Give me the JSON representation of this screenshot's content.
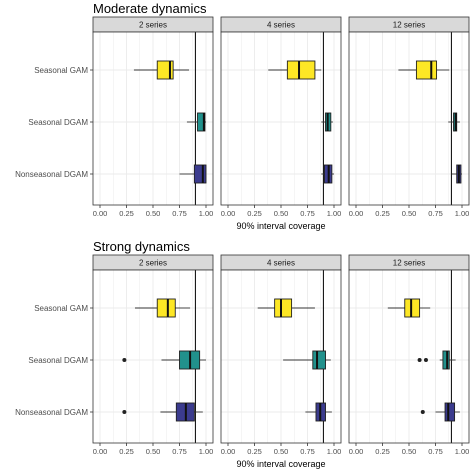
{
  "chart_data": [
    {
      "type": "boxplot",
      "title": "Moderate dynamics",
      "xlabel": "90% interval coverage",
      "xlim": [
        0,
        1
      ],
      "x_ticks": [
        "0.00",
        "0.25",
        "0.50",
        "0.75",
        "1.00"
      ],
      "reference_line": 0.9,
      "categories": [
        "Seasonal GAM",
        "Seasonal DGAM",
        "Nonseasonal DGAM"
      ],
      "facets": [
        {
          "label": "2 series",
          "boxes": [
            {
              "category": "Seasonal GAM",
              "min": 0.32,
              "q1": 0.54,
              "median": 0.66,
              "q3": 0.69,
              "max": 0.84,
              "outliers": []
            },
            {
              "category": "Seasonal DGAM",
              "min": 0.82,
              "q1": 0.92,
              "median": 0.98,
              "q3": 0.99,
              "max": 1.0,
              "outliers": []
            },
            {
              "category": "Nonseasonal DGAM",
              "min": 0.75,
              "q1": 0.89,
              "median": 0.97,
              "q3": 1.0,
              "max": 1.0,
              "outliers": []
            }
          ]
        },
        {
          "label": "4 series",
          "boxes": [
            {
              "category": "Seasonal GAM",
              "min": 0.38,
              "q1": 0.56,
              "median": 0.67,
              "q3": 0.82,
              "max": 0.88,
              "outliers": []
            },
            {
              "category": "Seasonal DGAM",
              "min": 0.88,
              "q1": 0.92,
              "median": 0.94,
              "q3": 0.97,
              "max": 0.99,
              "outliers": []
            },
            {
              "category": "Nonseasonal DGAM",
              "min": 0.88,
              "q1": 0.91,
              "median": 0.95,
              "q3": 0.98,
              "max": 1.0,
              "outliers": []
            }
          ]
        },
        {
          "label": "12 series",
          "boxes": [
            {
              "category": "Seasonal GAM",
              "min": 0.4,
              "q1": 0.57,
              "median": 0.71,
              "q3": 0.76,
              "max": 0.88,
              "outliers": []
            },
            {
              "category": "Seasonal DGAM",
              "min": 0.87,
              "q1": 0.92,
              "median": 0.94,
              "q3": 0.95,
              "max": 0.98,
              "outliers": []
            },
            {
              "category": "Nonseasonal DGAM",
              "min": 0.9,
              "q1": 0.95,
              "median": 0.97,
              "q3": 0.99,
              "max": 1.0,
              "outliers": []
            }
          ]
        }
      ]
    },
    {
      "type": "boxplot",
      "title": "Strong dynamics",
      "xlabel": "90% interval coverage",
      "xlim": [
        0,
        1
      ],
      "x_ticks": [
        "0.00",
        "0.25",
        "0.50",
        "0.75",
        "1.00"
      ],
      "reference_line": 0.9,
      "categories": [
        "Seasonal GAM",
        "Seasonal DGAM",
        "Nonseasonal DGAM"
      ],
      "facets": [
        {
          "label": "2 series",
          "boxes": [
            {
              "category": "Seasonal GAM",
              "min": 0.33,
              "q1": 0.54,
              "median": 0.64,
              "q3": 0.71,
              "max": 0.85,
              "outliers": []
            },
            {
              "category": "Seasonal DGAM",
              "min": 0.58,
              "q1": 0.75,
              "median": 0.85,
              "q3": 0.94,
              "max": 1.0,
              "outliers": [
                0.23
              ]
            },
            {
              "category": "Nonseasonal DGAM",
              "min": 0.57,
              "q1": 0.72,
              "median": 0.81,
              "q3": 0.89,
              "max": 0.97,
              "outliers": [
                0.23
              ]
            }
          ]
        },
        {
          "label": "4 series",
          "boxes": [
            {
              "category": "Seasonal GAM",
              "min": 0.28,
              "q1": 0.44,
              "median": 0.5,
              "q3": 0.6,
              "max": 0.82,
              "outliers": []
            },
            {
              "category": "Seasonal DGAM",
              "min": 0.52,
              "q1": 0.8,
              "median": 0.84,
              "q3": 0.92,
              "max": 0.97,
              "outliers": []
            },
            {
              "category": "Nonseasonal DGAM",
              "min": 0.73,
              "q1": 0.83,
              "median": 0.87,
              "q3": 0.92,
              "max": 0.98,
              "outliers": []
            }
          ]
        },
        {
          "label": "12 series",
          "boxes": [
            {
              "category": "Seasonal GAM",
              "min": 0.3,
              "q1": 0.46,
              "median": 0.52,
              "q3": 0.6,
              "max": 0.7,
              "outliers": []
            },
            {
              "category": "Seasonal DGAM",
              "min": 0.79,
              "q1": 0.82,
              "median": 0.86,
              "q3": 0.88,
              "max": 0.94,
              "outliers": [
                0.6,
                0.66
              ]
            },
            {
              "category": "Nonseasonal DGAM",
              "min": 0.75,
              "q1": 0.84,
              "median": 0.87,
              "q3": 0.93,
              "max": 0.98,
              "outliers": [
                0.63
              ]
            }
          ]
        }
      ]
    }
  ],
  "colors": {
    "Seasonal GAM": "#fde725",
    "Seasonal DGAM": "#21918c",
    "Nonseasonal DGAM": "#3b3b8e",
    "strip_fill": "#d9d9d9",
    "grid": "#ebebeb",
    "border": "#333333"
  }
}
